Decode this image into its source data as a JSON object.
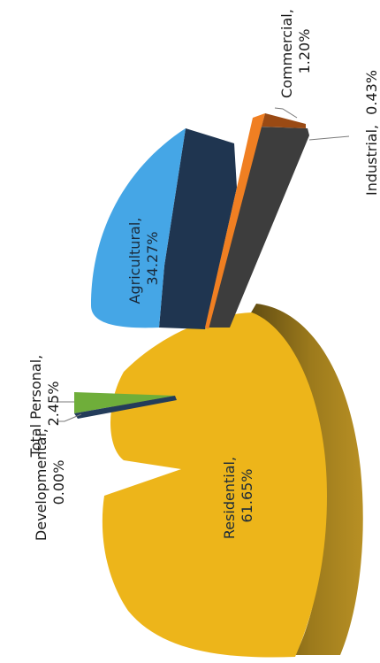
{
  "chart_data": {
    "type": "pie",
    "title": "",
    "slices": [
      {
        "name": "Residential",
        "label": "Residential,",
        "pct_label": "61.65%",
        "value": 61.65,
        "color": "#EDB51A",
        "side": "#8A6A16"
      },
      {
        "name": "Agricultural",
        "label": "Agricultural,",
        "pct_label": "34.27%",
        "value": 34.27,
        "color": "#45A6E6",
        "side": "#1F3550"
      },
      {
        "name": "Commercial",
        "label": "Commercial,",
        "pct_label": "1.20%",
        "value": 1.2,
        "color": "#F07F22",
        "side": "#9A4A14"
      },
      {
        "name": "Industrial",
        "label": "Industrial,",
        "pct_label": "0.43%",
        "value": 0.43,
        "color": "#8C8C8C",
        "side": "#3D3D3D"
      },
      {
        "name": "Total Personal",
        "label": "Total Personal,",
        "pct_label": "2.45%",
        "value": 2.45,
        "color": "#6FAE3A",
        "side": "#233C5A"
      },
      {
        "name": "Developmental",
        "label": "Developmental,",
        "pct_label": "0.00%",
        "value": 0.0,
        "color": "#2A4A6E",
        "side": "#1A2E46"
      }
    ]
  }
}
